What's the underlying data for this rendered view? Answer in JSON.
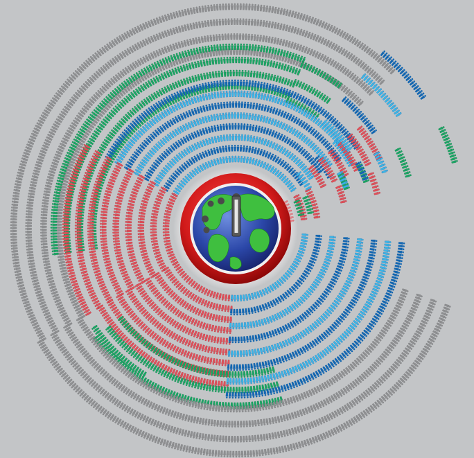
{
  "palette": {
    "background": "#c3c5c7",
    "gray": "#8e8f91",
    "gray_dark": "#6f7072",
    "green": "#1aa564",
    "green_dark": "#0d7a45",
    "red": "#e0505a",
    "red_dark": "#a92a33",
    "blue": "#3bb5e6",
    "blue_dark": "#1366b0"
  },
  "icons": {
    "figure": "person-figure-icon",
    "center": "globe-icon",
    "rim": "red-ring",
    "hands": "clock-hands-icon"
  },
  "sectors": [
    {
      "group": "gray-upper",
      "color": "gray"
    },
    {
      "group": "green-upper",
      "color": "green"
    },
    {
      "group": "blue-upper",
      "color": "blue"
    },
    {
      "group": "red-left",
      "color": "red"
    },
    {
      "group": "red-lower",
      "color": "red"
    },
    {
      "group": "green-lower",
      "color": "green"
    },
    {
      "group": "gray-lower",
      "color": "gray"
    },
    {
      "group": "blue-right",
      "color": "blue"
    },
    {
      "group": "gray-right",
      "color": "gray"
    },
    {
      "group": "fragments",
      "color": "mixed"
    }
  ]
}
